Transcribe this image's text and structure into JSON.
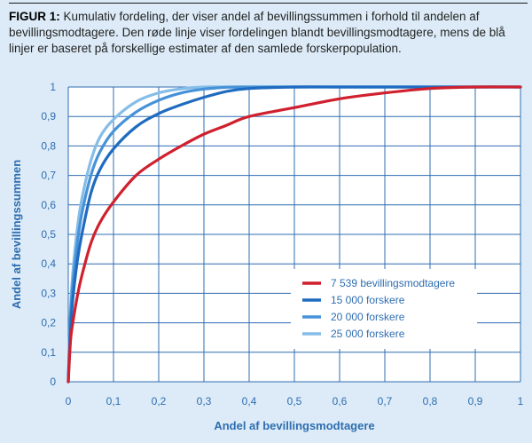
{
  "caption": {
    "lead": "FIGUR 1:",
    "text": " Kumulativ fordeling, der viser andel af bevillingssummen i forhold til andelen af bevillingsmodtagere. Den røde linje viser fordelingen blandt bevillingsmodtagere, mens de blå linjer er baseret på forskellige estimater af den samlede forskerpopulation."
  },
  "chart_data": {
    "type": "line",
    "xlabel": "Andel af bevillingsmodtagere",
    "ylabel": "Andel af bevillingssummen",
    "xlim": [
      0,
      1
    ],
    "ylim": [
      0,
      1
    ],
    "xticks": [
      0,
      0.1,
      0.2,
      0.3,
      0.4,
      0.5,
      0.6,
      0.7,
      0.8,
      0.9,
      1
    ],
    "yticks": [
      0,
      0.1,
      0.2,
      0.3,
      0.4,
      0.5,
      0.6,
      0.7,
      0.8,
      0.9,
      1
    ],
    "xtick_labels": [
      "0",
      "0,1",
      "0,2",
      "0,3",
      "0,4",
      "0,5",
      "0,6",
      "0,7",
      "0,8",
      "0,9",
      "1"
    ],
    "ytick_labels": [
      "0",
      "0,1",
      "0,2",
      "0,3",
      "0,4",
      "0,5",
      "0,6",
      "0,7",
      "0,8",
      "0,9",
      "1"
    ],
    "grid": true,
    "legend_position": "bottom-right",
    "series": [
      {
        "name": "7 539 bevillingsmodtagere",
        "color": "#d0202e",
        "x": [
          0,
          0.005,
          0.01,
          0.02,
          0.03,
          0.05,
          0.07,
          0.1,
          0.15,
          0.2,
          0.25,
          0.3,
          0.35,
          0.4,
          0.5,
          0.6,
          0.7,
          0.8,
          0.9,
          1
        ],
        "y": [
          0,
          0.14,
          0.2,
          0.29,
          0.36,
          0.47,
          0.54,
          0.61,
          0.7,
          0.755,
          0.8,
          0.84,
          0.87,
          0.9,
          0.93,
          0.96,
          0.98,
          0.995,
          1,
          1
        ]
      },
      {
        "name": "15 000 forskere",
        "color": "#1f6bc0",
        "x": [
          0,
          0.005,
          0.01,
          0.02,
          0.03,
          0.05,
          0.07,
          0.1,
          0.15,
          0.2,
          0.25,
          0.3,
          0.35,
          0.4,
          0.5,
          0.6,
          0.7,
          0.8,
          0.9,
          1
        ],
        "y": [
          0,
          0.18,
          0.28,
          0.41,
          0.5,
          0.64,
          0.72,
          0.79,
          0.865,
          0.91,
          0.94,
          0.965,
          0.985,
          0.995,
          1,
          1,
          1,
          1,
          1,
          1
        ]
      },
      {
        "name": "20 000 forskere",
        "color": "#4692d8",
        "x": [
          0,
          0.005,
          0.01,
          0.02,
          0.03,
          0.05,
          0.07,
          0.1,
          0.15,
          0.2,
          0.25,
          0.3,
          0.35,
          0.4,
          0.5,
          0.6,
          0.7,
          0.8,
          0.9,
          1
        ],
        "y": [
          0,
          0.22,
          0.33,
          0.47,
          0.57,
          0.7,
          0.78,
          0.85,
          0.915,
          0.955,
          0.98,
          0.993,
          0.999,
          1,
          1,
          1,
          1,
          1,
          1,
          1
        ]
      },
      {
        "name": "25 000 forskere",
        "color": "#85bde8",
        "x": [
          0,
          0.005,
          0.01,
          0.02,
          0.03,
          0.05,
          0.07,
          0.1,
          0.15,
          0.2,
          0.25,
          0.3,
          0.35,
          0.4,
          0.5,
          0.6,
          0.7,
          0.8,
          0.9,
          1
        ],
        "y": [
          0,
          0.25,
          0.37,
          0.52,
          0.62,
          0.75,
          0.83,
          0.89,
          0.95,
          0.98,
          0.994,
          1,
          1,
          1,
          1,
          1,
          1,
          1,
          1,
          1
        ]
      }
    ]
  }
}
